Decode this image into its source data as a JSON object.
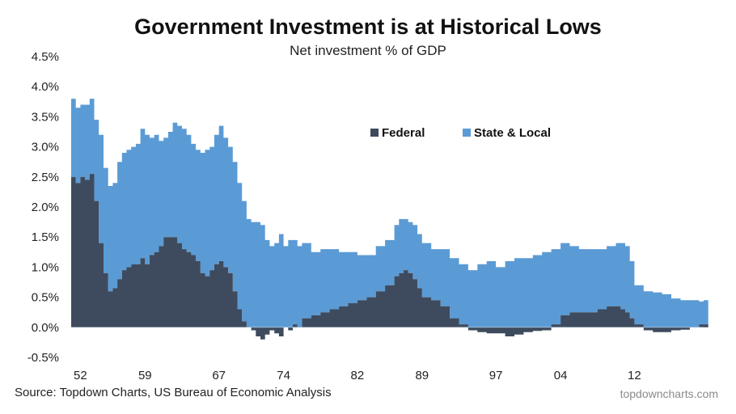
{
  "chart_data": {
    "type": "area",
    "title": "Government Investment is at Historical Lows",
    "subtitle": "Net investment % of GDP",
    "ylim": [
      -0.5,
      4.5
    ],
    "y_ticks": [
      -0.5,
      0.0,
      0.5,
      1.0,
      1.5,
      2.0,
      2.5,
      3.0,
      3.5,
      4.0,
      4.5
    ],
    "y_tick_labels": [
      "-0.5%",
      "0.0%",
      "0.5%",
      "1.0%",
      "1.5%",
      "2.0%",
      "2.5%",
      "3.0%",
      "3.5%",
      "4.0%",
      "4.5%"
    ],
    "xlim": [
      1951,
      2019.5
    ],
    "x_ticks": [
      1952,
      1959,
      1967,
      1974,
      1982,
      1989,
      1997,
      2004,
      2012
    ],
    "x_tick_labels": [
      "52",
      "59",
      "67",
      "74",
      "82",
      "89",
      "97",
      "04",
      "12"
    ],
    "legend": [
      "Federal",
      "State & Local"
    ],
    "stacked": true,
    "x": [
      1951,
      1951.5,
      1952,
      1952.5,
      1953,
      1953.5,
      1954,
      1954.5,
      1955,
      1955.5,
      1956,
      1956.5,
      1957,
      1957.5,
      1958,
      1958.5,
      1959,
      1959.5,
      1960,
      1960.5,
      1961,
      1961.5,
      1962,
      1962.5,
      1963,
      1963.5,
      1964,
      1964.5,
      1965,
      1965.5,
      1966,
      1966.5,
      1967,
      1967.5,
      1968,
      1968.5,
      1969,
      1969.5,
      1970,
      1970.5,
      1971,
      1971.5,
      1972,
      1972.5,
      1973,
      1973.5,
      1974,
      1974.5,
      1975,
      1975.5,
      1976,
      1977,
      1978,
      1979,
      1980,
      1981,
      1982,
      1983,
      1984,
      1985,
      1986,
      1986.5,
      1987,
      1987.5,
      1988,
      1988.5,
      1989,
      1990,
      1991,
      1992,
      1993,
      1994,
      1995,
      1996,
      1997,
      1998,
      1999,
      2000,
      2001,
      2002,
      2003,
      2004,
      2005,
      2006,
      2007,
      2008,
      2009,
      2010,
      2010.5,
      2011,
      2011.5,
      2012,
      2013,
      2014,
      2015,
      2016,
      2017,
      2018,
      2019,
      2019.5
    ],
    "series": [
      {
        "name": "Federal",
        "color": "#3e4b5e",
        "values": [
          2.5,
          2.4,
          2.5,
          2.45,
          2.55,
          2.1,
          1.4,
          0.9,
          0.6,
          0.65,
          0.8,
          0.95,
          1.0,
          1.05,
          1.05,
          1.15,
          1.05,
          1.2,
          1.25,
          1.35,
          1.5,
          1.5,
          1.5,
          1.4,
          1.3,
          1.25,
          1.2,
          1.1,
          0.9,
          0.85,
          0.95,
          1.05,
          1.1,
          1.0,
          0.9,
          0.6,
          0.3,
          0.1,
          0.0,
          -0.05,
          -0.15,
          -0.2,
          -0.12,
          -0.05,
          -0.1,
          -0.15,
          0.0,
          -0.05,
          0.05,
          0.0,
          0.15,
          0.2,
          0.25,
          0.3,
          0.35,
          0.4,
          0.45,
          0.5,
          0.6,
          0.7,
          0.85,
          0.9,
          0.95,
          0.9,
          0.8,
          0.65,
          0.5,
          0.45,
          0.35,
          0.15,
          0.05,
          -0.05,
          -0.08,
          -0.1,
          -0.1,
          -0.15,
          -0.12,
          -0.08,
          -0.06,
          -0.05,
          0.05,
          0.2,
          0.25,
          0.25,
          0.25,
          0.3,
          0.35,
          0.35,
          0.3,
          0.25,
          0.15,
          0.05,
          -0.05,
          -0.08,
          -0.08,
          -0.05,
          -0.04,
          0.0,
          0.05,
          0.05
        ]
      },
      {
        "name": "State & Local",
        "color": "#5b9bd5",
        "values": [
          1.3,
          1.25,
          1.2,
          1.25,
          1.25,
          1.35,
          1.8,
          1.75,
          1.75,
          1.75,
          1.95,
          1.95,
          1.95,
          1.95,
          2.0,
          2.15,
          2.15,
          1.95,
          1.95,
          1.75,
          1.65,
          1.75,
          1.9,
          1.95,
          2.0,
          1.95,
          1.85,
          1.85,
          2.0,
          2.1,
          2.05,
          2.15,
          2.25,
          2.15,
          2.1,
          2.15,
          2.1,
          2.0,
          1.8,
          1.75,
          1.75,
          1.7,
          1.45,
          1.35,
          1.4,
          1.55,
          1.35,
          1.45,
          1.4,
          1.35,
          1.25,
          1.05,
          1.05,
          1.0,
          0.9,
          0.85,
          0.75,
          0.7,
          0.75,
          0.75,
          0.85,
          0.9,
          0.85,
          0.85,
          0.9,
          0.9,
          0.9,
          0.85,
          0.95,
          1.0,
          1.0,
          0.95,
          1.05,
          1.1,
          1.0,
          1.1,
          1.15,
          1.15,
          1.2,
          1.25,
          1.25,
          1.2,
          1.1,
          1.05,
          1.05,
          1.0,
          1.0,
          1.05,
          1.1,
          1.1,
          0.95,
          0.65,
          0.6,
          0.58,
          0.55,
          0.48,
          0.45,
          0.45,
          0.38,
          0.4
        ]
      }
    ]
  },
  "source": "Source: Topdown Charts, US Bureau of Economic Analysis",
  "watermark": "topdowncharts.com"
}
